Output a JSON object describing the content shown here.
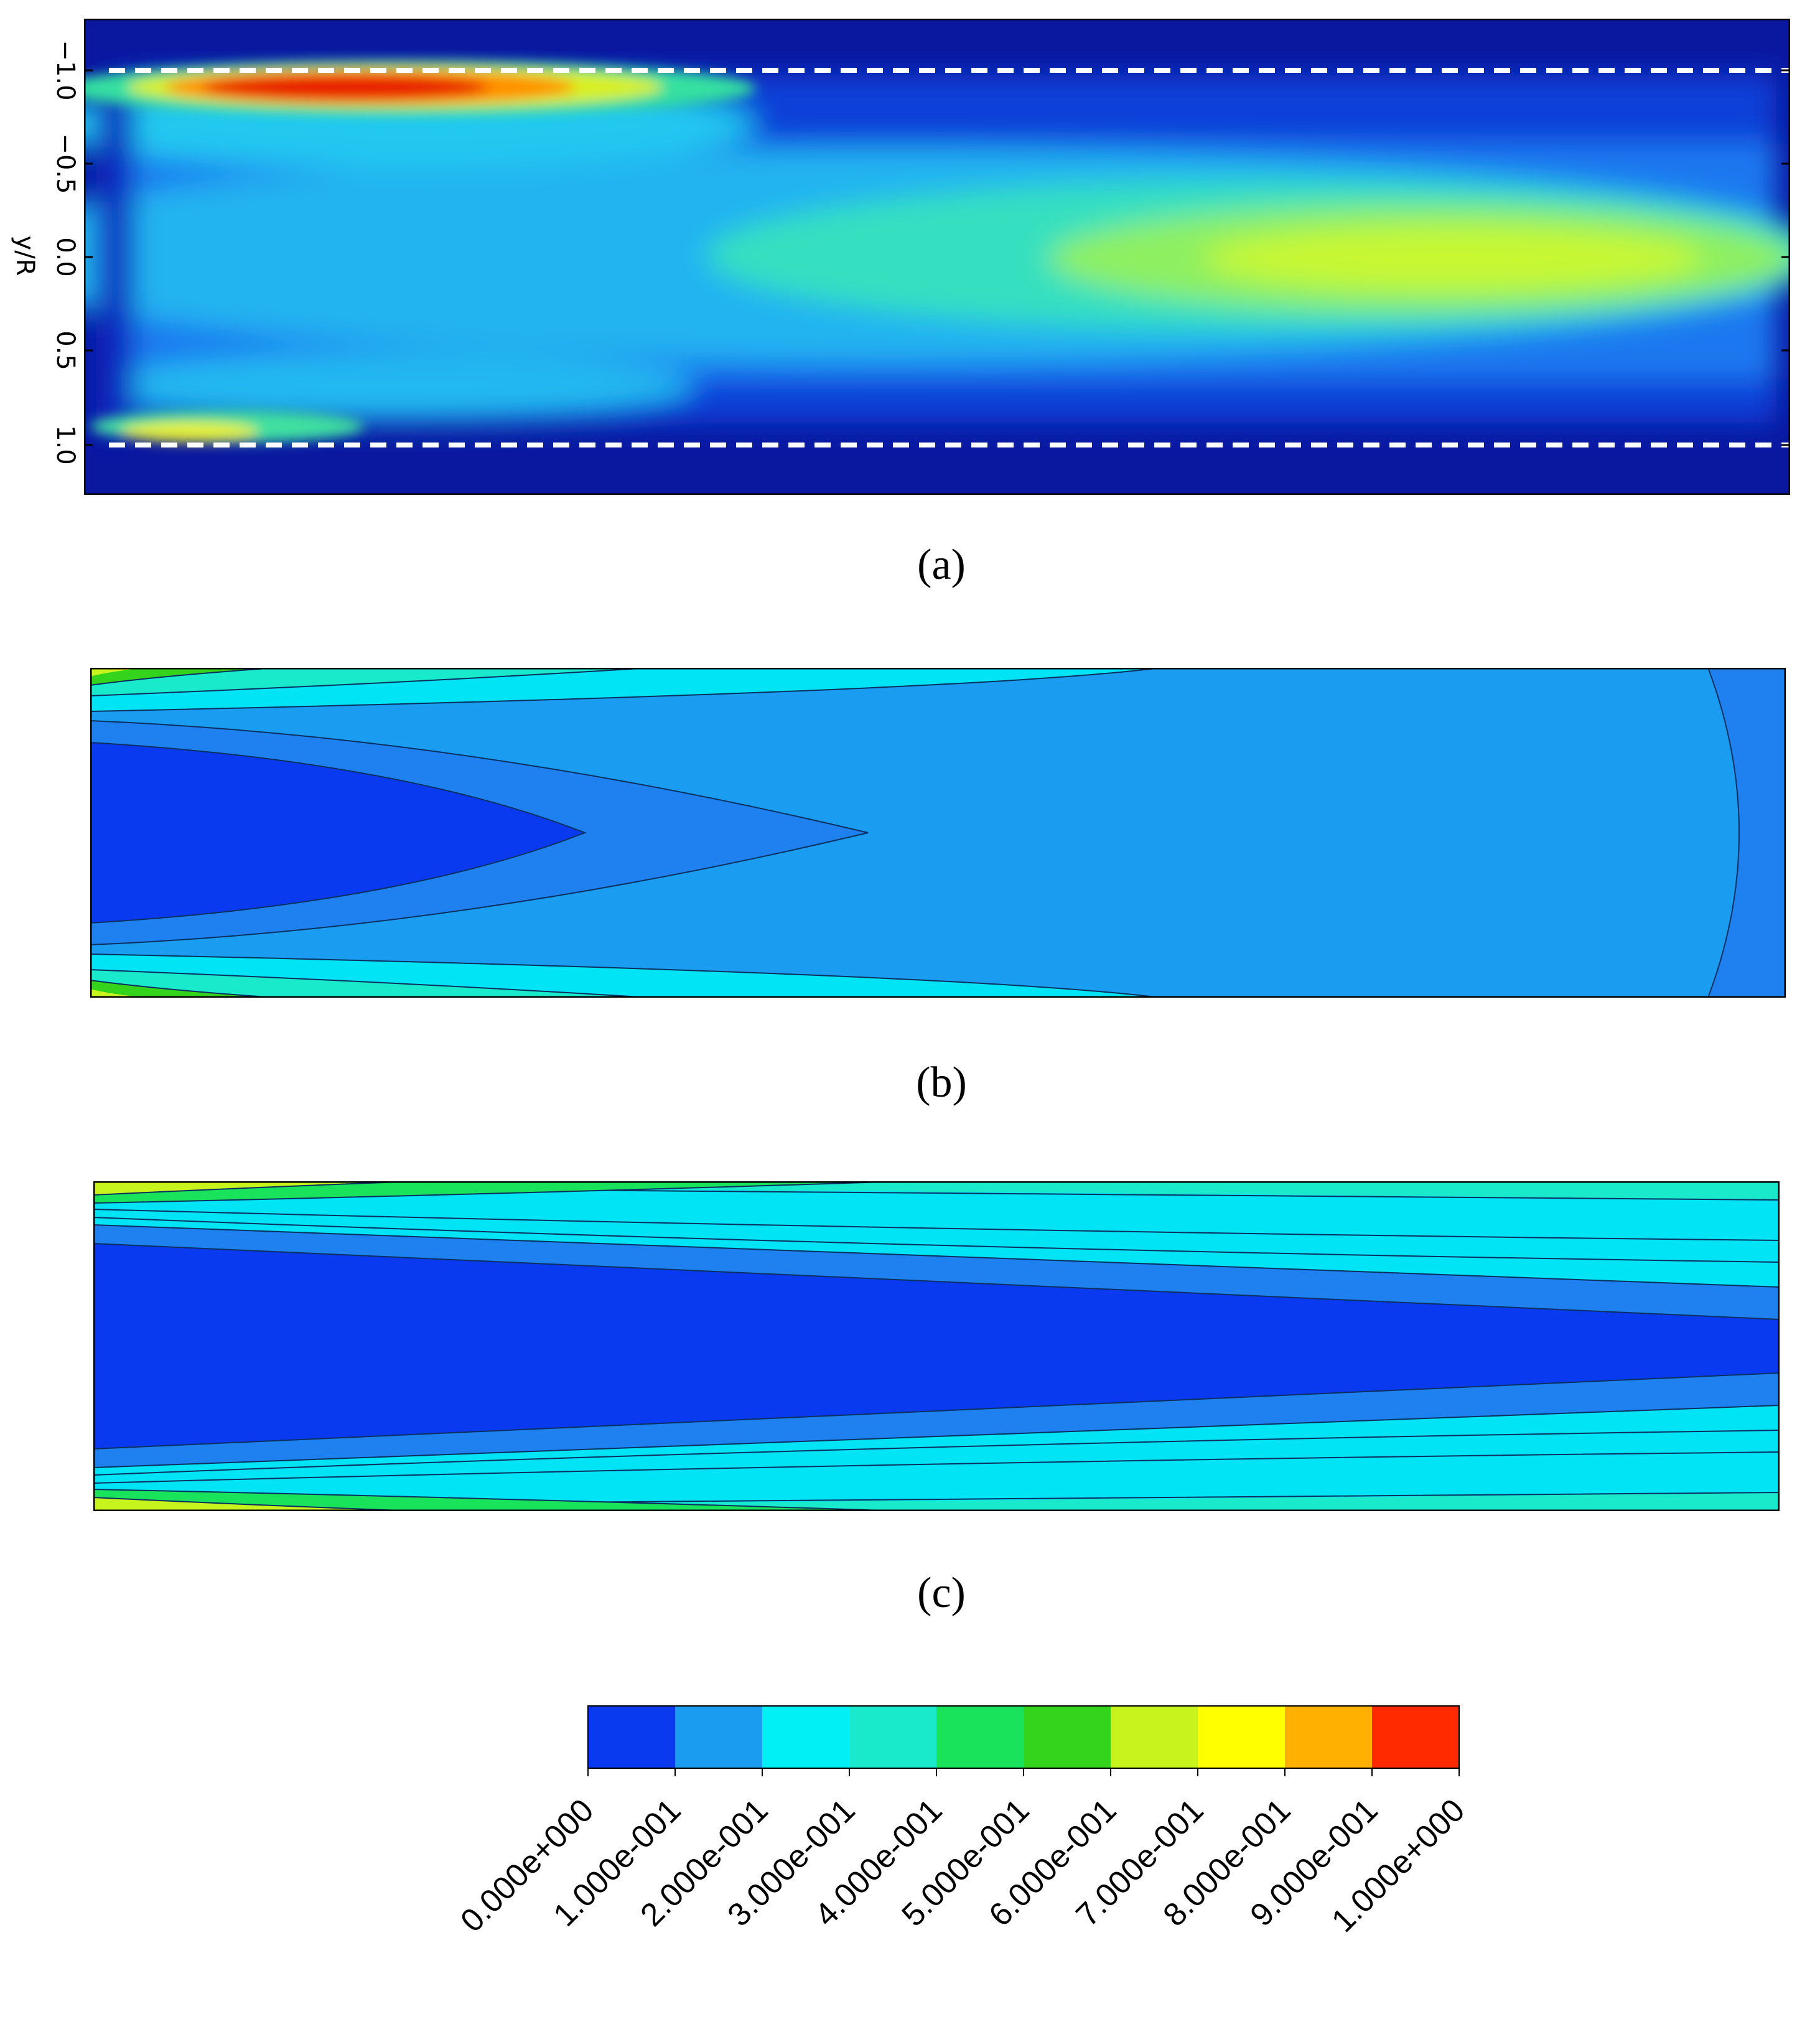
{
  "chart_data": [
    {
      "panel": "a",
      "type": "heatmap",
      "caption": "(a)",
      "ylabel": "y/R",
      "yticks": [
        "−1.0",
        "−0.5",
        "0.0",
        "0.5",
        "1.0"
      ],
      "ylim": [
        -1.25,
        1.25
      ],
      "wall_lines_y": [
        -1.0,
        1.0
      ]
    },
    {
      "panel": "b",
      "type": "heatmap",
      "caption": "(b)"
    },
    {
      "panel": "c",
      "type": "heatmap",
      "caption": "(c)"
    }
  ],
  "colorbar": {
    "levels": [
      "0.000e+000",
      "1.000e-001",
      "2.000e-001",
      "3.000e-001",
      "4.000e-001",
      "5.000e-001",
      "6.000e-001",
      "7.000e-001",
      "8.000e-001",
      "9.000e-001",
      "1.000e+000"
    ],
    "colors": [
      "#0a3af0",
      "#1a9cf0",
      "#00f0f6",
      "#19eacb",
      "#19e35a",
      "#35d41c",
      "#c7f41c",
      "#ffff00",
      "#ffb000",
      "#ff2a00"
    ]
  }
}
